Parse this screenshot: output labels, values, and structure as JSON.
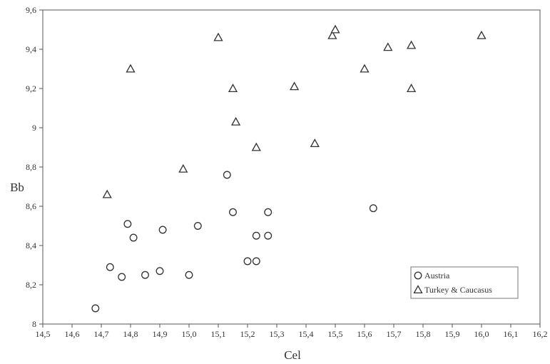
{
  "chart_data": {
    "type": "scatter",
    "title": "",
    "xlabel": "Cel",
    "ylabel": "Bb",
    "xlim": [
      14.5,
      16.2
    ],
    "ylim": [
      8,
      9.6
    ],
    "xticks": [
      14.5,
      14.6,
      14.7,
      14.8,
      14.9,
      15.0,
      15.1,
      15.2,
      15.3,
      15.4,
      15.5,
      15.6,
      15.7,
      15.8,
      15.9,
      16.0,
      16.1,
      16.2
    ],
    "xtick_labels": [
      "14,5",
      "14,6",
      "14,7",
      "14,8",
      "14,9",
      "15,0",
      "15,1",
      "15,2",
      "15,3",
      "15,4",
      "15,5",
      "15,6",
      "15,7",
      "15,8",
      "15,9",
      "16,0",
      "16,1",
      "16,2"
    ],
    "yticks": [
      8,
      8.2,
      8.4,
      8.6,
      8.8,
      9,
      9.2,
      9.4,
      9.6
    ],
    "ytick_labels": [
      "8",
      "8,2",
      "8,4",
      "8,6",
      "8,8",
      "9",
      "9,2",
      "9,4",
      "9,6"
    ],
    "grid": false,
    "legend_position": "bottom-right",
    "series": [
      {
        "name": "Austria",
        "marker": "circle",
        "points": [
          [
            14.68,
            8.08
          ],
          [
            14.73,
            8.29
          ],
          [
            14.77,
            8.24
          ],
          [
            14.79,
            8.51
          ],
          [
            14.81,
            8.44
          ],
          [
            14.85,
            8.25
          ],
          [
            14.9,
            8.27
          ],
          [
            14.91,
            8.48
          ],
          [
            15.0,
            8.25
          ],
          [
            15.03,
            8.5
          ],
          [
            15.13,
            8.76
          ],
          [
            15.15,
            8.57
          ],
          [
            15.2,
            8.32
          ],
          [
            15.23,
            8.32
          ],
          [
            15.23,
            8.45
          ],
          [
            15.27,
            8.45
          ],
          [
            15.27,
            8.57
          ],
          [
            15.63,
            8.59
          ]
        ]
      },
      {
        "name": "Turkey & Caucasus",
        "marker": "triangle",
        "points": [
          [
            14.72,
            8.66
          ],
          [
            14.8,
            9.3
          ],
          [
            14.98,
            8.79
          ],
          [
            15.1,
            9.46
          ],
          [
            15.15,
            9.2
          ],
          [
            15.16,
            9.03
          ],
          [
            15.23,
            8.9
          ],
          [
            15.36,
            9.21
          ],
          [
            15.43,
            8.92
          ],
          [
            15.49,
            9.47
          ],
          [
            15.5,
            9.5
          ],
          [
            15.6,
            9.3
          ],
          [
            15.68,
            9.41
          ],
          [
            15.76,
            9.42
          ],
          [
            15.76,
            9.2
          ],
          [
            16.0,
            9.47
          ]
        ]
      }
    ]
  }
}
